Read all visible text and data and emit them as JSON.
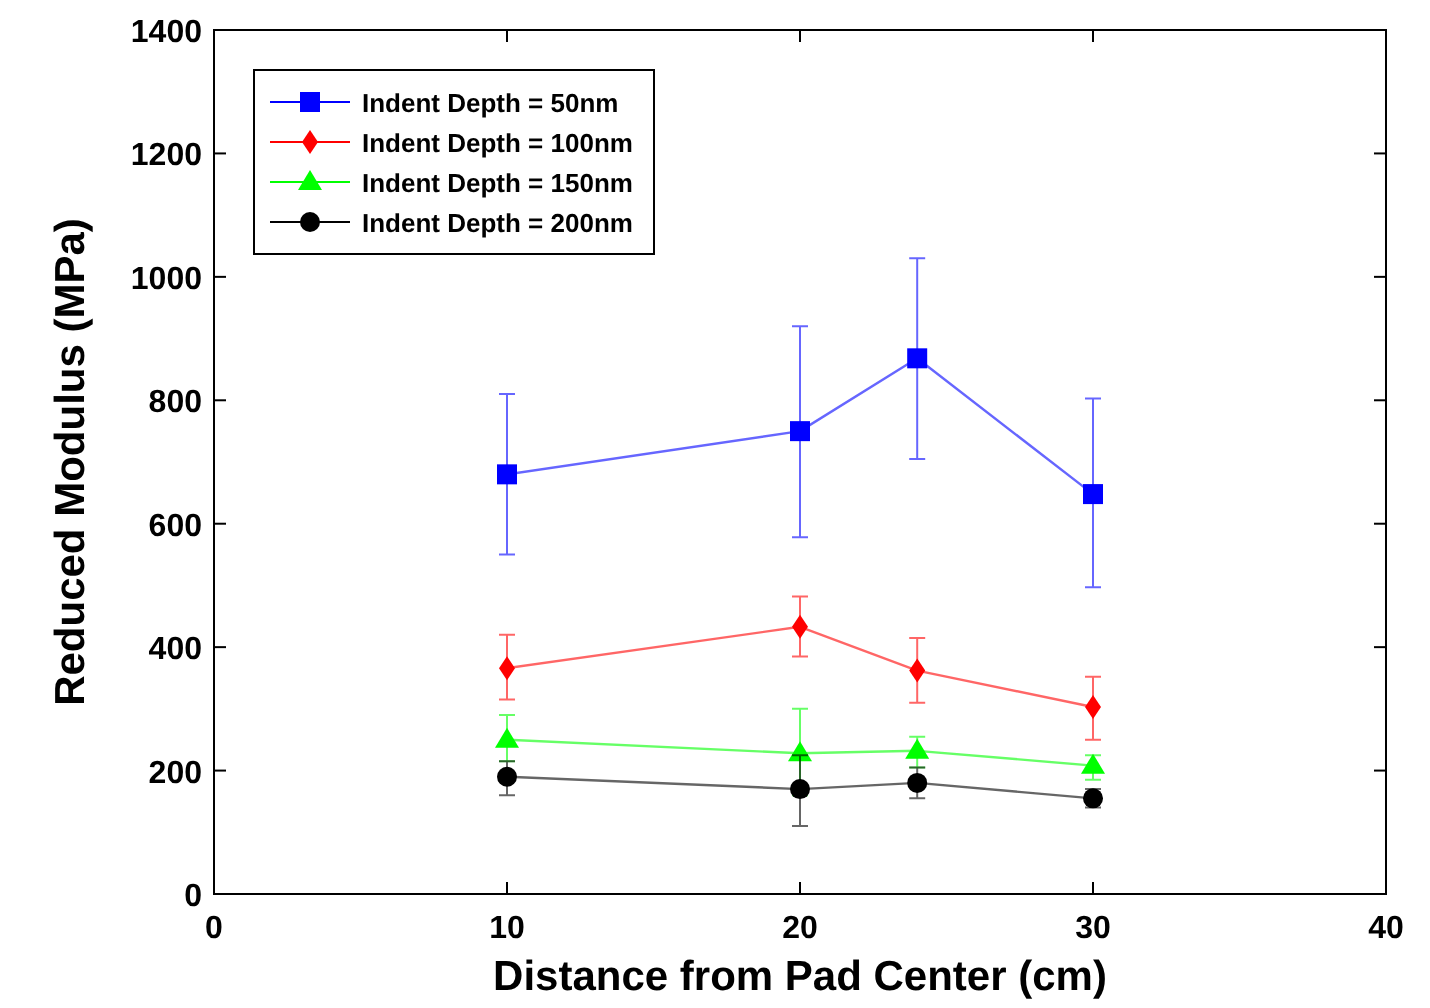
{
  "chart_data": {
    "type": "line",
    "xlabel": "Distance from Pad Center (cm)",
    "ylabel": "Reduced Modulus (MPa)",
    "x": [
      10,
      20,
      24,
      30
    ],
    "xlim": [
      0,
      40
    ],
    "xticks": [
      0,
      10,
      20,
      30,
      40
    ],
    "ylim": [
      0,
      1400
    ],
    "yticks": [
      0,
      200,
      400,
      600,
      800,
      1000,
      1200,
      1400
    ],
    "legend": "top left",
    "grid": false,
    "series": [
      {
        "name": "Indent Depth = 50nm",
        "color": "#0000ff",
        "marker": "square",
        "values": [
          680,
          750,
          868,
          648
        ],
        "errors": [
          [
            550,
            810
          ],
          [
            578,
            920
          ],
          [
            705,
            1030
          ],
          [
            497,
            803
          ]
        ]
      },
      {
        "name": "Indent Depth = 100nm",
        "color": "#ff0000",
        "marker": "diamond",
        "values": [
          366,
          433,
          362,
          303
        ],
        "errors": [
          [
            315,
            420
          ],
          [
            385,
            482
          ],
          [
            310,
            415
          ],
          [
            250,
            352
          ]
        ]
      },
      {
        "name": "Indent Depth = 150nm",
        "color": "#00ff00",
        "marker": "triangle",
        "values": [
          250,
          228,
          232,
          208
        ],
        "errors": [
          [
            215,
            290
          ],
          [
            160,
            300
          ],
          [
            205,
            255
          ],
          [
            185,
            225
          ]
        ]
      },
      {
        "name": "Indent Depth = 200nm",
        "color": "#000000",
        "marker": "circle",
        "values": [
          190,
          170,
          180,
          155
        ],
        "errors": [
          [
            160,
            215
          ],
          [
            110,
            225
          ],
          [
            155,
            205
          ],
          [
            140,
            170
          ]
        ]
      }
    ]
  }
}
